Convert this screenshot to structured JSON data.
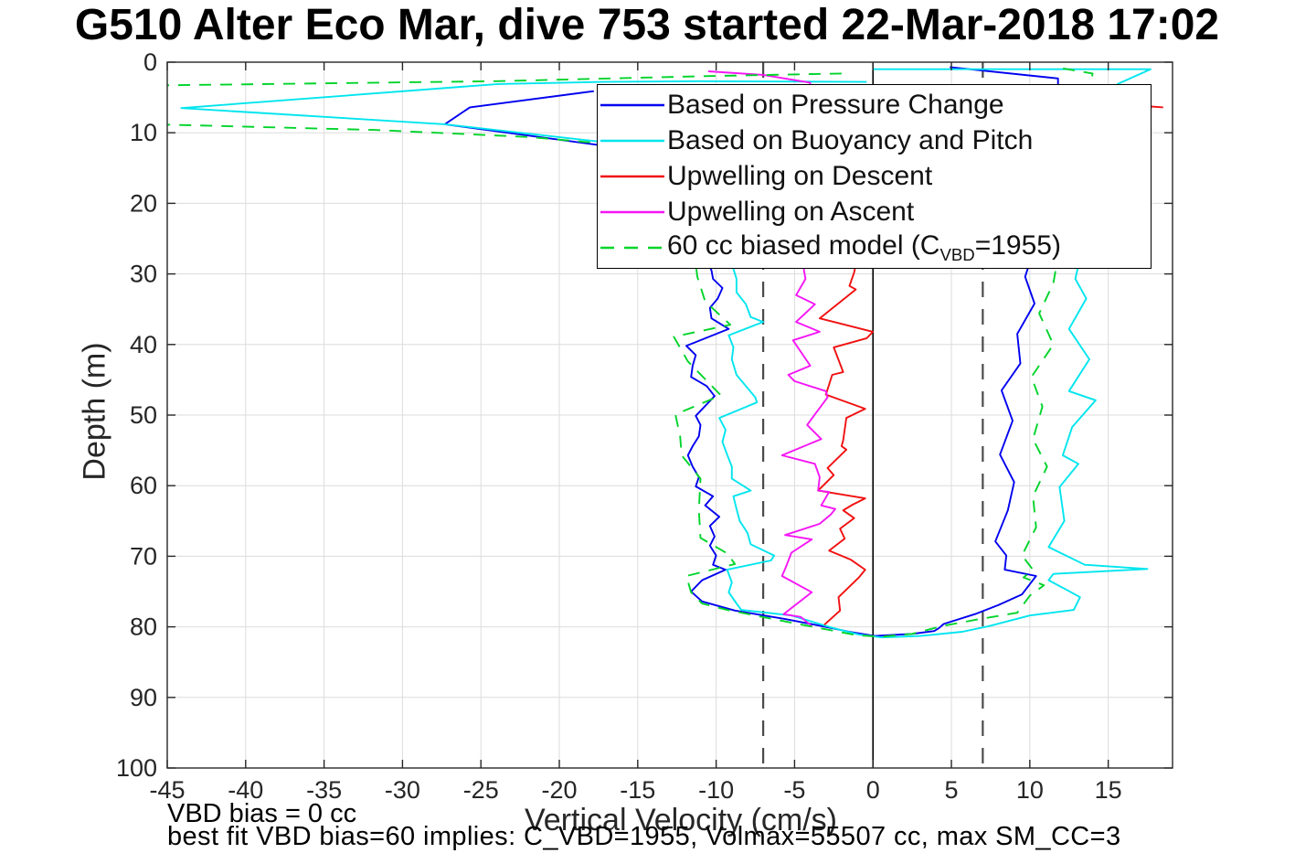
{
  "title": "G510 Alter Eco Mar, dive 753 started 22-Mar-2018 17:02",
  "axes": {
    "x_label": "Vertical Velocity (cm/s)",
    "y_label": "Depth (m)",
    "x_ticks": [
      -45,
      -40,
      -35,
      -30,
      -25,
      -20,
      -15,
      -10,
      -5,
      0,
      5,
      10,
      15
    ],
    "y_ticks": [
      0,
      10,
      20,
      30,
      40,
      50,
      60,
      70,
      80,
      90,
      100
    ]
  },
  "annotations": {
    "vbd_bias": "VBD bias = 0 cc",
    "best_fit": "best fit VBD bias=60 implies: C_VBD=1955, Volmax=55507 cc, max SM_CC=3"
  },
  "colors": {
    "blue": "#0000f0",
    "cyan": "#00e5ee",
    "red": "#f01010",
    "magenta": "#f516f5",
    "green": "#00d42a",
    "grid": "#dcdcdc",
    "ref_dash": "#4a4a4a",
    "axis": "#262626",
    "zero_line": "#000000"
  },
  "legend": {
    "items": [
      {
        "label": "Based on Pressure Change",
        "parts": [
          {
            "t": "Based on Pressure Change"
          }
        ],
        "color_key": "blue",
        "dashed": false
      },
      {
        "label": "Based on Buoyancy and Pitch",
        "parts": [
          {
            "t": "Based on Buoyancy and Pitch"
          }
        ],
        "color_key": "cyan",
        "dashed": false
      },
      {
        "label": "Upwelling on Descent",
        "parts": [
          {
            "t": "Upwelling on Descent"
          }
        ],
        "color_key": "red",
        "dashed": false
      },
      {
        "label": "Upwelling on Ascent",
        "parts": [
          {
            "t": "Upwelling on Ascent"
          }
        ],
        "color_key": "magenta",
        "dashed": false
      },
      {
        "label": "60 cc biased model (C_VBD=1955)",
        "parts": [
          {
            "t": "60 cc biased model (C"
          },
          {
            "sub": "VBD"
          },
          {
            "t": "=1955)"
          }
        ],
        "color_key": "green",
        "dashed": true
      }
    ]
  },
  "chart_data": {
    "type": "line",
    "title": "G510 Alter Eco Mar, dive 753 started 22-Mar-2018 17:02",
    "xlabel": "Vertical Velocity (cm/s)",
    "ylabel": "Depth (m)",
    "xlim": [
      -45,
      19.1
    ],
    "ylim": [
      0,
      100
    ],
    "y_reversed": true,
    "grid": true,
    "legend_position": "upper-center",
    "ref_lines": [
      {
        "x": 0,
        "style": "solid",
        "color_key": "zero_line"
      },
      {
        "x": -7,
        "style": "dashed",
        "color_key": "ref_dash"
      },
      {
        "x": 7,
        "style": "dashed",
        "color_key": "ref_dash"
      }
    ],
    "series": [
      {
        "name": "Based on Pressure Change",
        "color_key": "blue",
        "style": "solid",
        "points": [
          [
            -17.8,
            4.1
          ],
          [
            -25.7,
            6.4
          ],
          [
            -27.3,
            8.8
          ],
          [
            -17.3,
            11.8
          ],
          [
            -14,
            17
          ],
          [
            -11.5,
            24
          ],
          [
            -10.3,
            29.5
          ],
          [
            -10.2,
            30.7
          ],
          [
            -9.6,
            32
          ],
          [
            -9.9,
            33.5
          ],
          [
            -10.4,
            34.8
          ],
          [
            -10.3,
            36.3
          ],
          [
            -9.2,
            37.8
          ],
          [
            -11.9,
            40.2
          ],
          [
            -11.3,
            41.5
          ],
          [
            -11.5,
            43
          ],
          [
            -11.6,
            44.6
          ],
          [
            -10.6,
            45.9
          ],
          [
            -10.1,
            47.3
          ],
          [
            -11.3,
            50.1
          ],
          [
            -11,
            51.4
          ],
          [
            -11.1,
            53
          ],
          [
            -11.5,
            54.4
          ],
          [
            -11.8,
            55.7
          ],
          [
            -11.5,
            57.3
          ],
          [
            -11.1,
            58.8
          ],
          [
            -11.3,
            60.1
          ],
          [
            -10.2,
            61.5
          ],
          [
            -10.7,
            62.8
          ],
          [
            -9.8,
            64.4
          ],
          [
            -10.4,
            65.7
          ],
          [
            -10.1,
            67.2
          ],
          [
            -10.4,
            68.5
          ],
          [
            -10,
            69.9
          ],
          [
            -10.2,
            71.2
          ],
          [
            -9.4,
            71.9
          ],
          [
            -10.9,
            73.4
          ],
          [
            -11.6,
            75
          ],
          [
            -10.9,
            76.4
          ],
          [
            -8.8,
            77.7
          ],
          [
            -5.6,
            78.9
          ],
          [
            -3.7,
            79.7
          ],
          [
            -1.5,
            80.7
          ],
          [
            0.1,
            81.3
          ],
          [
            2.5,
            81
          ],
          [
            3.9,
            80.6
          ],
          [
            4.2,
            80.2
          ],
          [
            4.5,
            79.6
          ],
          [
            6.5,
            78.2
          ],
          [
            8,
            76.9
          ],
          [
            9.5,
            75.4
          ],
          [
            10.4,
            72.8
          ],
          [
            8.4,
            71.9
          ],
          [
            8.5,
            69.9
          ],
          [
            7.8,
            67.9
          ],
          [
            8.6,
            63.5
          ],
          [
            9,
            59.5
          ],
          [
            8.1,
            55.6
          ],
          [
            8.9,
            50.8
          ],
          [
            8.2,
            46.5
          ],
          [
            9.4,
            42.7
          ],
          [
            9.2,
            38.5
          ],
          [
            10.3,
            34.2
          ],
          [
            9.7,
            30.4
          ],
          [
            10.5,
            25
          ],
          [
            11.3,
            15
          ],
          [
            11.8,
            6
          ],
          [
            11.8,
            2.3
          ],
          [
            4.9,
            0.7
          ]
        ]
      },
      {
        "name": "Based on Buoyancy and Pitch",
        "color_key": "cyan",
        "style": "solid",
        "points": [
          [
            -0.4,
            2.8
          ],
          [
            -10.9,
            2.7
          ],
          [
            -17.3,
            2.8
          ],
          [
            -23.9,
            3.1
          ],
          [
            -44.1,
            6.5
          ],
          [
            -27.3,
            8.8
          ],
          [
            -17.3,
            11.3
          ],
          [
            -13,
            17
          ],
          [
            -9.5,
            25
          ],
          [
            -8.7,
            30.7
          ],
          [
            -8.7,
            32.6
          ],
          [
            -8.1,
            34.3
          ],
          [
            -7.8,
            36.1
          ],
          [
            -7,
            36.8
          ],
          [
            -9.2,
            38.7
          ],
          [
            -8.9,
            40.4
          ],
          [
            -9,
            42.1
          ],
          [
            -8.7,
            44.3
          ],
          [
            -7.5,
            47.5
          ],
          [
            -7.4,
            48.2
          ],
          [
            -9.8,
            50.4
          ],
          [
            -9.4,
            52.1
          ],
          [
            -9.6,
            53.8
          ],
          [
            -9.3,
            55.6
          ],
          [
            -9,
            57.3
          ],
          [
            -9,
            59
          ],
          [
            -7.8,
            60.7
          ],
          [
            -8.9,
            61.5
          ],
          [
            -8.7,
            63.3
          ],
          [
            -8.5,
            65
          ],
          [
            -8,
            66.7
          ],
          [
            -7.8,
            68.3
          ],
          [
            -6.3,
            69.9
          ],
          [
            -6.5,
            70.6
          ],
          [
            -9.3,
            71.9
          ],
          [
            -9,
            73.7
          ],
          [
            -9.2,
            75.1
          ],
          [
            -8.7,
            76.7
          ],
          [
            -8.4,
            77.6
          ],
          [
            -5.2,
            78.4
          ],
          [
            -2.5,
            80.2
          ],
          [
            -0.9,
            81.1
          ],
          [
            0.6,
            81.5
          ],
          [
            3,
            81.3
          ],
          [
            5.7,
            80.7
          ],
          [
            7.4,
            79.9
          ],
          [
            10,
            78.4
          ],
          [
            12.8,
            77.6
          ],
          [
            13.2,
            75.8
          ],
          [
            12.3,
            74.7
          ],
          [
            11.2,
            73.4
          ],
          [
            11.5,
            72.5
          ],
          [
            17.5,
            71.8
          ],
          [
            13.5,
            71.2
          ],
          [
            11.2,
            68.7
          ],
          [
            12.2,
            65
          ],
          [
            11.9,
            60.2
          ],
          [
            13.1,
            56.9
          ],
          [
            12.1,
            55.7
          ],
          [
            12.7,
            51.7
          ],
          [
            14.2,
            47.9
          ],
          [
            12.5,
            46.6
          ],
          [
            13.8,
            42.1
          ],
          [
            12.5,
            37.8
          ],
          [
            13.6,
            33.5
          ],
          [
            12.9,
            30.7
          ],
          [
            13.5,
            25
          ],
          [
            14.5,
            15
          ],
          [
            15.6,
            3.1
          ],
          [
            17.7,
            1
          ],
          [
            10,
            1
          ],
          [
            0,
            1
          ]
        ]
      },
      {
        "name": "Upwelling on Descent",
        "color_key": "red",
        "style": "solid",
        "points": [
          [
            18.5,
            6.4
          ],
          [
            17.8,
            6.3
          ],
          [
            12,
            8
          ],
          [
            2,
            15
          ],
          [
            -0.5,
            22
          ],
          [
            -1.2,
            29.8
          ],
          [
            -1.5,
            31.7
          ],
          [
            -1.1,
            32.2
          ],
          [
            -3.4,
            36.3
          ],
          [
            0,
            38.2
          ],
          [
            -0.4,
            39.1
          ],
          [
            -2.5,
            40.4
          ],
          [
            -1.9,
            43.9
          ],
          [
            -2.6,
            44.3
          ],
          [
            -3,
            47.1
          ],
          [
            -0.5,
            49.1
          ],
          [
            -1.7,
            50.4
          ],
          [
            -1.9,
            53.6
          ],
          [
            -2,
            54.4
          ],
          [
            -1.7,
            54.9
          ],
          [
            -2.9,
            57.5
          ],
          [
            -2.5,
            58.5
          ],
          [
            -3.5,
            60.7
          ],
          [
            -0.5,
            61.8
          ],
          [
            -1.3,
            62.7
          ],
          [
            -1.9,
            63.5
          ],
          [
            -1.2,
            64.6
          ],
          [
            -2.1,
            66.1
          ],
          [
            -1.8,
            67.5
          ],
          [
            -2.8,
            69.2
          ],
          [
            -1.4,
            70.5
          ],
          [
            -0.5,
            71.9
          ],
          [
            -0.9,
            73
          ],
          [
            -2.2,
            75.8
          ],
          [
            -2.1,
            77.7
          ],
          [
            -3.1,
            79.7
          ]
        ]
      },
      {
        "name": "Upwelling on Ascent",
        "color_key": "magenta",
        "style": "solid",
        "points": [
          [
            -10.5,
            1.3
          ],
          [
            -7,
            1.8
          ],
          [
            -4,
            2.9
          ],
          [
            -4.5,
            10
          ],
          [
            -4.3,
            20
          ],
          [
            -4.4,
            29.5
          ],
          [
            -4.3,
            30.7
          ],
          [
            -4.9,
            33
          ],
          [
            -3.7,
            34.3
          ],
          [
            -4.9,
            36.8
          ],
          [
            -3.4,
            38.2
          ],
          [
            -5.1,
            39.4
          ],
          [
            -4,
            43
          ],
          [
            -5.4,
            44.3
          ],
          [
            -5,
            45.2
          ],
          [
            -3,
            46.6
          ],
          [
            -2.9,
            47.5
          ],
          [
            -3.7,
            49.9
          ],
          [
            -4.2,
            51.4
          ],
          [
            -3.3,
            53.4
          ],
          [
            -5.8,
            55.7
          ],
          [
            -3.7,
            56.9
          ],
          [
            -3.4,
            58.8
          ],
          [
            -3.5,
            60.7
          ],
          [
            -2.8,
            60.9
          ],
          [
            -3.3,
            62.8
          ],
          [
            -2.4,
            63.3
          ],
          [
            -2.7,
            64.1
          ],
          [
            -3.4,
            65.4
          ],
          [
            -5.6,
            67
          ],
          [
            -3.9,
            67.6
          ],
          [
            -5.2,
            69.5
          ],
          [
            -5.6,
            71.8
          ],
          [
            -5.8,
            72.8
          ],
          [
            -3.9,
            75.1
          ],
          [
            -5.7,
            78.2
          ],
          [
            -4.6,
            78.6
          ],
          [
            -3.9,
            79.9
          ]
        ]
      },
      {
        "name": "60 cc biased model (C_VBD=1955)",
        "color_key": "green",
        "style": "dashed",
        "points": [
          [
            -2,
            1.6
          ],
          [
            -11,
            2
          ],
          [
            -24,
            2.7
          ],
          [
            -46,
            3.3
          ],
          [
            -46,
            8.8
          ],
          [
            -31.8,
            9.6
          ],
          [
            -22,
            10.6
          ],
          [
            -17.3,
            11.5
          ],
          [
            -13.5,
            17
          ],
          [
            -11.5,
            25
          ],
          [
            -11.2,
            30.4
          ],
          [
            -10.7,
            33.9
          ],
          [
            -9.1,
            37.2
          ],
          [
            -12.7,
            38.9
          ],
          [
            -11.8,
            42.4
          ],
          [
            -9.7,
            47.2
          ],
          [
            -12.6,
            49.9
          ],
          [
            -12.3,
            53
          ],
          [
            -12.2,
            55.7
          ],
          [
            -11,
            59
          ],
          [
            -11.1,
            63.5
          ],
          [
            -11,
            67.4
          ],
          [
            -9.3,
            69.6
          ],
          [
            -8.8,
            71.1
          ],
          [
            -11.9,
            72.8
          ],
          [
            -11.6,
            75.1
          ],
          [
            -10.9,
            76.7
          ],
          [
            -9.3,
            77.6
          ],
          [
            -5,
            79.5
          ],
          [
            -1,
            81.2
          ],
          [
            0.5,
            81.4
          ],
          [
            2.5,
            81
          ],
          [
            4.4,
            79.9
          ],
          [
            6.8,
            78.9
          ],
          [
            9.2,
            78
          ],
          [
            10,
            75.6
          ],
          [
            10.9,
            74.1
          ],
          [
            9.6,
            73
          ],
          [
            10.2,
            71.9
          ],
          [
            9.5,
            69.9
          ],
          [
            10.4,
            65.9
          ],
          [
            10.2,
            61.5
          ],
          [
            11.1,
            57.3
          ],
          [
            10.2,
            53.4
          ],
          [
            10.8,
            48.8
          ],
          [
            10.1,
            44.6
          ],
          [
            11.5,
            40
          ],
          [
            10.6,
            35.6
          ],
          [
            11.5,
            31.3
          ],
          [
            12,
            25
          ],
          [
            13,
            15
          ],
          [
            14,
            1.6
          ],
          [
            11.9,
            0.8
          ]
        ]
      }
    ]
  }
}
